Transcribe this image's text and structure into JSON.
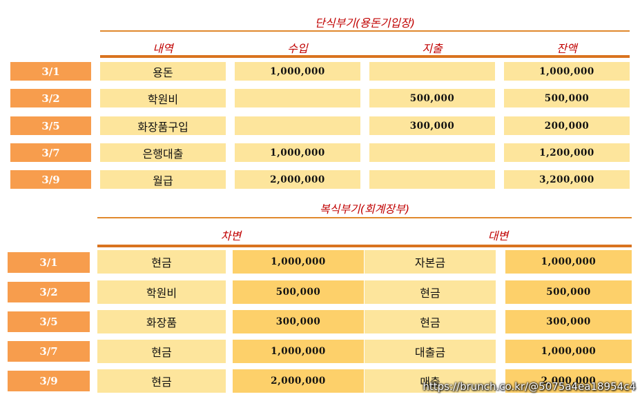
{
  "single": {
    "title": "단식부기(용돈기입장)",
    "headers": [
      "내역",
      "수입",
      "지출",
      "잔액"
    ],
    "rows": [
      {
        "date": "3/1",
        "item": "용돈",
        "income": "1,000,000",
        "expense": "",
        "balance": "1,000,000"
      },
      {
        "date": "3/2",
        "item": "학원비",
        "income": "",
        "expense": "500,000",
        "balance": "500,000"
      },
      {
        "date": "3/5",
        "item": "화장품구입",
        "income": "",
        "expense": "300,000",
        "balance": "200,000"
      },
      {
        "date": "3/7",
        "item": "은행대출",
        "income": "1,000,000",
        "expense": "",
        "balance": "1,200,000"
      },
      {
        "date": "3/9",
        "item": "월급",
        "income": "2,000,000",
        "expense": "",
        "balance": "3,200,000"
      }
    ]
  },
  "double": {
    "title": "복식부기(회계장부)",
    "headers": [
      "차변",
      "대변"
    ],
    "rows": [
      {
        "date": "3/1",
        "debit_account": "현금",
        "debit_amount": "1,000,000",
        "credit_account": "자본금",
        "credit_amount": "1,000,000"
      },
      {
        "date": "3/2",
        "debit_account": "학원비",
        "debit_amount": "500,000",
        "credit_account": "현금",
        "credit_amount": "500,000"
      },
      {
        "date": "3/5",
        "debit_account": "화장품",
        "debit_amount": "300,000",
        "credit_account": "현금",
        "credit_amount": "300,000"
      },
      {
        "date": "3/7",
        "debit_account": "현금",
        "debit_amount": "1,000,000",
        "credit_account": "대출금",
        "credit_amount": "1,000,000"
      },
      {
        "date": "3/9",
        "debit_account": "현금",
        "debit_amount": "2,000,000",
        "credit_account": "매출",
        "credit_amount": "2,000,000"
      }
    ]
  },
  "watermark": "https://brunch.co.kr/@5075a4ea18954c4"
}
